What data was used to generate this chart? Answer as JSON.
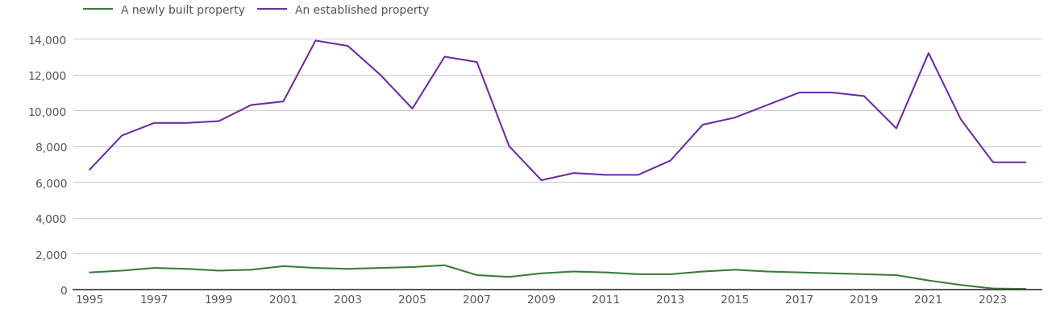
{
  "years": [
    1995,
    1996,
    1997,
    1998,
    1999,
    2000,
    2001,
    2002,
    2003,
    2004,
    2005,
    2006,
    2007,
    2008,
    2009,
    2010,
    2011,
    2012,
    2013,
    2014,
    2015,
    2016,
    2017,
    2018,
    2019,
    2020,
    2021,
    2022,
    2023,
    2024
  ],
  "new_homes": [
    950,
    1050,
    1200,
    1150,
    1050,
    1100,
    1300,
    1200,
    1150,
    1200,
    1250,
    1350,
    800,
    700,
    900,
    1000,
    950,
    850,
    850,
    1000,
    1100,
    1000,
    950,
    900,
    850,
    800,
    500,
    250,
    50,
    30
  ],
  "established_homes": [
    6700,
    8600,
    9300,
    9300,
    9400,
    10300,
    10500,
    13900,
    13600,
    12000,
    10100,
    13000,
    12700,
    8000,
    6100,
    6500,
    6400,
    6400,
    7200,
    9200,
    9600,
    10300,
    11000,
    11000,
    10800,
    9000,
    13200,
    9500,
    7100,
    7100
  ],
  "new_color": "#3a7d3a",
  "established_color": "#6b2fa0",
  "background_color": "#ffffff",
  "plot_area_color": "#ffffff",
  "grid_color": "#cccccc",
  "legend_new": "A newly built property",
  "legend_established": "An established property",
  "ylim": [
    0,
    14000
  ],
  "yticks": [
    0,
    2000,
    4000,
    6000,
    8000,
    10000,
    12000,
    14000
  ],
  "xticks": [
    1995,
    1997,
    1999,
    2001,
    2003,
    2005,
    2007,
    2009,
    2011,
    2013,
    2015,
    2017,
    2019,
    2021,
    2023
  ],
  "tick_label_color": "#555555",
  "tick_fontsize": 10,
  "legend_fontsize": 10,
  "line_width": 1.5
}
